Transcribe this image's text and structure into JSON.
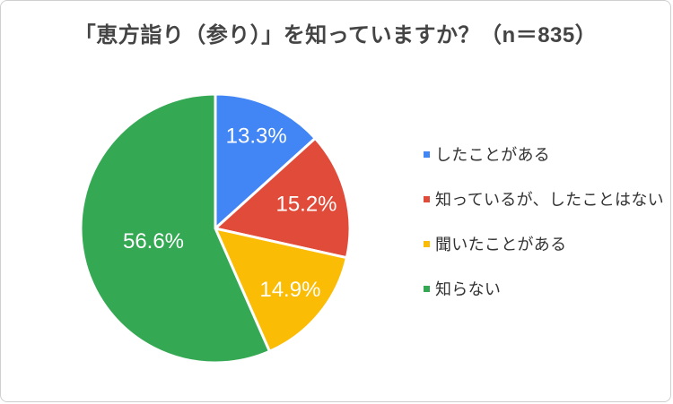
{
  "page": {
    "background": "#ffffff",
    "border_color": "#cfcfcf"
  },
  "chart_data": {
    "type": "pie",
    "title": "「恵方詣り（参り）」を知っていますか？（n＝835）",
    "sample_size_label": "n＝835",
    "unit": "%",
    "slices": [
      {
        "label": "したことがある",
        "value": 13.3,
        "display": "13.3%",
        "color": "#4285F4"
      },
      {
        "label": "知っているが、したことはない",
        "value": 15.2,
        "display": "15.2%",
        "color": "#E04B3A"
      },
      {
        "label": "聞いたことがある",
        "value": 14.9,
        "display": "14.9%",
        "color": "#FBBC05"
      },
      {
        "label": "知らない",
        "value": 56.6,
        "display": "56.6%",
        "color": "#34A853"
      }
    ],
    "start_angle_deg": 0,
    "direction": "clockwise",
    "legend_position": "right",
    "slice_border_color": "#ffffff",
    "slice_label_color": "#ffffff"
  }
}
